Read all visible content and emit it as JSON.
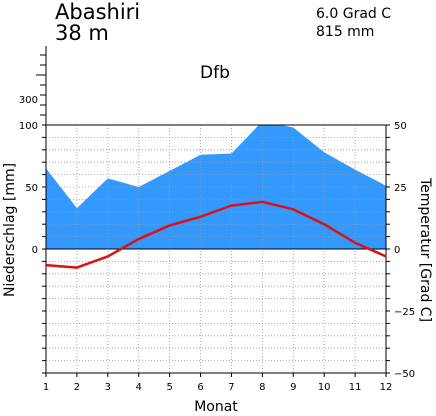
{
  "header": {
    "station": "Abashiri",
    "elevation": "38 m",
    "mean_temp": "6.0 Grad C",
    "annual_precip": "815 mm",
    "climate_class": "Dfb"
  },
  "chart_data": {
    "type": "area",
    "x": [
      1,
      2,
      3,
      4,
      5,
      6,
      7,
      8,
      9,
      10,
      11,
      12
    ],
    "xlabel": "Monat",
    "ylabel_left": "Niederschlag [mm]",
    "ylabel_right": "Temperatur [Grad C]",
    "precip_ticks": [
      "100",
      "50",
      "0"
    ],
    "precip_extra_tick": "300",
    "temp_ticks": [
      "50",
      "25",
      "0",
      "−25",
      "−50"
    ],
    "ylim_precip": [
      -100,
      100
    ],
    "ylim_temp": [
      -50,
      50
    ],
    "grid": true,
    "series": [
      {
        "name": "Niederschlag",
        "kind": "area",
        "color": "#3399ff",
        "values": [
          65,
          33,
          57,
          50,
          63,
          76,
          77,
          103,
          98,
          78,
          64,
          51
        ]
      },
      {
        "name": "Temperatur",
        "kind": "line",
        "color": "#dd1111",
        "values": [
          -6.5,
          -7.5,
          -3,
          4,
          9.5,
          13,
          17.5,
          19,
          16,
          10,
          2.5,
          -3
        ]
      }
    ]
  }
}
